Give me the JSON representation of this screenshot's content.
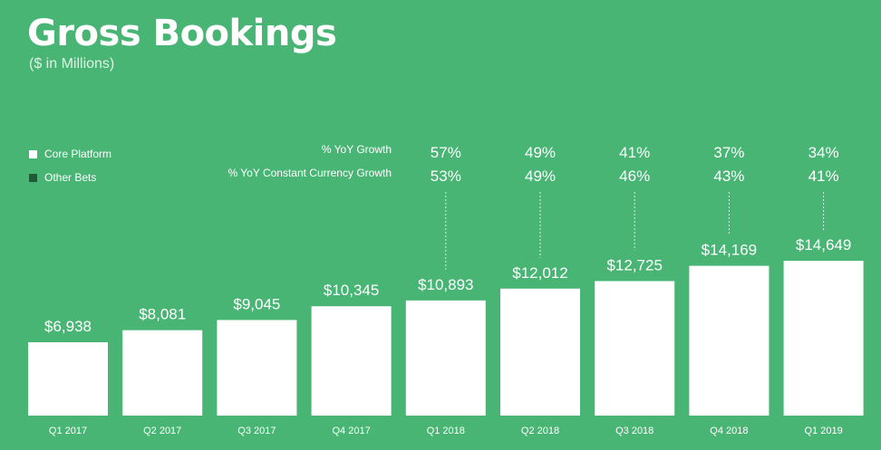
{
  "title": "Gross Bookings",
  "subtitle": "($ in Millions)",
  "legend": [
    {
      "label": "Core Platform",
      "color": "#ffffff"
    },
    {
      "label": "Other Bets",
      "color": "#1f5a37"
    }
  ],
  "growth_row_labels": {
    "yoy": "% YoY Growth",
    "cc": "% YoY Constant Currency Growth"
  },
  "colors": {
    "background": "#48b574",
    "bar": "#ffffff",
    "connector": "#d8f0e0"
  },
  "chart_data": {
    "type": "bar",
    "title": "Gross Bookings",
    "subtitle": "($ in Millions)",
    "categories": [
      "Q1 2017",
      "Q2 2017",
      "Q3 2017",
      "Q4 2017",
      "Q1 2018",
      "Q2 2018",
      "Q3 2018",
      "Q4 2018",
      "Q1 2019"
    ],
    "series": [
      {
        "name": "Core Platform",
        "values": [
          6938,
          8081,
          9045,
          10345,
          10893,
          12012,
          12725,
          14169,
          14649
        ]
      }
    ],
    "value_labels": [
      "$6,938",
      "$8,081",
      "$9,045",
      "$10,345",
      "$10,893",
      "$12,012",
      "$12,725",
      "$14,169",
      "$14,649"
    ],
    "yoy_growth": [
      "",
      "",
      "",
      "",
      "57%",
      "49%",
      "41%",
      "37%",
      "34%"
    ],
    "yoy_cc_growth": [
      "",
      "",
      "",
      "",
      "53%",
      "49%",
      "46%",
      "43%",
      "41%"
    ],
    "ylim": [
      0,
      18000
    ],
    "grid": false,
    "legend_position": "top-left"
  }
}
